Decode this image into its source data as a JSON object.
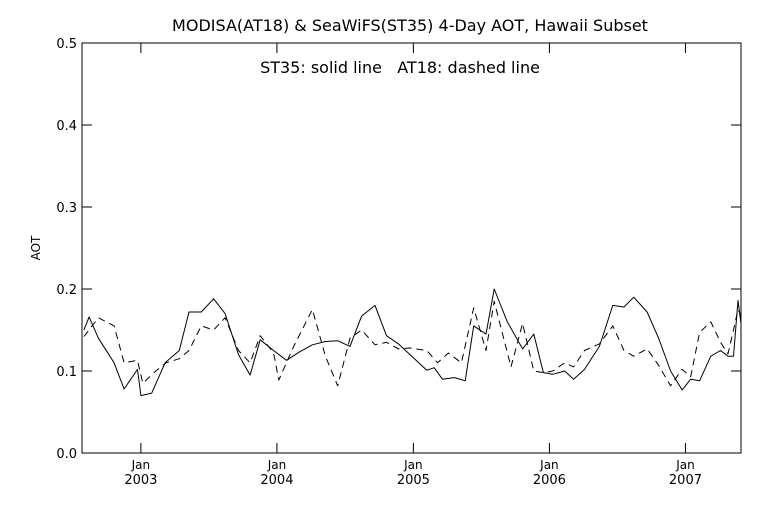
{
  "chart_data": {
    "type": "line",
    "title": "MODISA(AT18) & SeaWiFS(ST35) 4-Day AOT, Hawaii Subset",
    "annotation": "ST35: solid line   AT18: dashed line",
    "xlabel": "",
    "ylabel": "AOT",
    "ylim": [
      0.0,
      0.5
    ],
    "y_ticks": [
      "0.0",
      "0.1",
      "0.2",
      "0.3",
      "0.4",
      "0.5"
    ],
    "xlim": [
      "2002-07-27",
      "2007-05-30"
    ],
    "x_ticks": [
      {
        "month": "Jan",
        "year": "2003",
        "date": "2003-01-01"
      },
      {
        "month": "Jan",
        "year": "2004",
        "date": "2004-01-01"
      },
      {
        "month": "Jan",
        "year": "2005",
        "date": "2005-01-01"
      },
      {
        "month": "Jan",
        "year": "2006",
        "date": "2006-01-01"
      },
      {
        "month": "Jan",
        "year": "2007",
        "date": "2007-01-01"
      }
    ],
    "grid": false,
    "series": [
      {
        "name": "ST35",
        "line_style": "solid",
        "color": "#000000",
        "points": [
          [
            "2002-08-01",
            0.15
          ],
          [
            "2002-08-15",
            0.166
          ],
          [
            "2002-09-09",
            0.14
          ],
          [
            "2002-10-21",
            0.11
          ],
          [
            "2002-11-17",
            0.078
          ],
          [
            "2002-12-23",
            0.102
          ],
          [
            "2003-01-01",
            0.07
          ],
          [
            "2003-01-30",
            0.073
          ],
          [
            "2003-03-07",
            0.11
          ],
          [
            "2003-04-14",
            0.125
          ],
          [
            "2003-05-10",
            0.172
          ],
          [
            "2003-06-12",
            0.172
          ],
          [
            "2003-07-15",
            0.188
          ],
          [
            "2003-08-15",
            0.17
          ],
          [
            "2003-09-20",
            0.12
          ],
          [
            "2003-10-21",
            0.095
          ],
          [
            "2003-11-17",
            0.138
          ],
          [
            "2003-12-23",
            0.125
          ],
          [
            "2004-01-27",
            0.113
          ],
          [
            "2004-03-01",
            0.123
          ],
          [
            "2004-04-05",
            0.132
          ],
          [
            "2004-05-10",
            0.136
          ],
          [
            "2004-06-12",
            0.137
          ],
          [
            "2004-07-15",
            0.13
          ],
          [
            "2004-08-15",
            0.167
          ],
          [
            "2004-09-20",
            0.18
          ],
          [
            "2004-10-21",
            0.143
          ],
          [
            "2004-11-22",
            0.133
          ],
          [
            "2004-12-23",
            0.12
          ],
          [
            "2005-02-06",
            0.101
          ],
          [
            "2005-02-26",
            0.104
          ],
          [
            "2005-03-20",
            0.09
          ],
          [
            "2005-04-21",
            0.092
          ],
          [
            "2005-05-20",
            0.088
          ],
          [
            "2005-06-12",
            0.155
          ],
          [
            "2005-07-15",
            0.145
          ],
          [
            "2005-08-06",
            0.2
          ],
          [
            "2005-09-10",
            0.16
          ],
          [
            "2005-10-21",
            0.127
          ],
          [
            "2005-11-20",
            0.145
          ],
          [
            "2005-12-16",
            0.098
          ],
          [
            "2006-01-10",
            0.096
          ],
          [
            "2006-02-11",
            0.1
          ],
          [
            "2006-03-07",
            0.09
          ],
          [
            "2006-04-05",
            0.102
          ],
          [
            "2006-05-15",
            0.13
          ],
          [
            "2006-06-20",
            0.18
          ],
          [
            "2006-07-20",
            0.178
          ],
          [
            "2006-08-15",
            0.19
          ],
          [
            "2006-09-20",
            0.172
          ],
          [
            "2006-10-21",
            0.14
          ],
          [
            "2006-11-22",
            0.1
          ],
          [
            "2006-12-23",
            0.077
          ],
          [
            "2007-01-15",
            0.09
          ],
          [
            "2007-02-08",
            0.088
          ],
          [
            "2007-03-10",
            0.118
          ],
          [
            "2007-04-05",
            0.125
          ],
          [
            "2007-04-25",
            0.118
          ],
          [
            "2007-05-10",
            0.118
          ],
          [
            "2007-05-22",
            0.186
          ],
          [
            "2007-05-30",
            0.158
          ]
        ]
      },
      {
        "name": "AT18",
        "line_style": "dashed",
        "color": "#000000",
        "points": [
          [
            "2002-08-01",
            0.142
          ],
          [
            "2002-09-09",
            0.165
          ],
          [
            "2002-10-21",
            0.155
          ],
          [
            "2002-11-17",
            0.11
          ],
          [
            "2002-12-23",
            0.113
          ],
          [
            "2003-01-06",
            0.085
          ],
          [
            "2003-02-10",
            0.1
          ],
          [
            "2003-03-10",
            0.11
          ],
          [
            "2003-04-14",
            0.115
          ],
          [
            "2003-05-10",
            0.125
          ],
          [
            "2003-06-12",
            0.155
          ],
          [
            "2003-07-15",
            0.15
          ],
          [
            "2003-08-15",
            0.165
          ],
          [
            "2003-09-20",
            0.125
          ],
          [
            "2003-10-21",
            0.11
          ],
          [
            "2003-11-17",
            0.143
          ],
          [
            "2003-12-23",
            0.122
          ],
          [
            "2004-01-06",
            0.089
          ],
          [
            "2004-02-15",
            0.13
          ],
          [
            "2004-04-05",
            0.175
          ],
          [
            "2004-05-10",
            0.118
          ],
          [
            "2004-06-12",
            0.082
          ],
          [
            "2004-07-15",
            0.14
          ],
          [
            "2004-08-15",
            0.15
          ],
          [
            "2004-09-20",
            0.132
          ],
          [
            "2004-10-21",
            0.135
          ],
          [
            "2004-11-22",
            0.127
          ],
          [
            "2004-12-23",
            0.128
          ],
          [
            "2005-02-06",
            0.125
          ],
          [
            "2005-03-07",
            0.11
          ],
          [
            "2005-04-05",
            0.122
          ],
          [
            "2005-05-10",
            0.11
          ],
          [
            "2005-06-12",
            0.177
          ],
          [
            "2005-07-15",
            0.125
          ],
          [
            "2005-08-06",
            0.185
          ],
          [
            "2005-09-20",
            0.105
          ],
          [
            "2005-10-21",
            0.158
          ],
          [
            "2005-11-20",
            0.1
          ],
          [
            "2005-12-16",
            0.098
          ],
          [
            "2006-01-10",
            0.1
          ],
          [
            "2006-02-11",
            0.11
          ],
          [
            "2006-03-07",
            0.105
          ],
          [
            "2006-04-05",
            0.125
          ],
          [
            "2006-05-15",
            0.133
          ],
          [
            "2006-06-20",
            0.155
          ],
          [
            "2006-07-20",
            0.125
          ],
          [
            "2006-08-15",
            0.118
          ],
          [
            "2006-09-20",
            0.127
          ],
          [
            "2006-10-21",
            0.107
          ],
          [
            "2006-11-22",
            0.082
          ],
          [
            "2006-12-23",
            0.102
          ],
          [
            "2007-01-15",
            0.093
          ],
          [
            "2007-02-08",
            0.147
          ],
          [
            "2007-03-10",
            0.16
          ],
          [
            "2007-04-05",
            0.135
          ],
          [
            "2007-04-25",
            0.121
          ],
          [
            "2007-05-10",
            0.15
          ],
          [
            "2007-05-22",
            0.175
          ],
          [
            "2007-05-30",
            0.168
          ]
        ]
      }
    ]
  }
}
